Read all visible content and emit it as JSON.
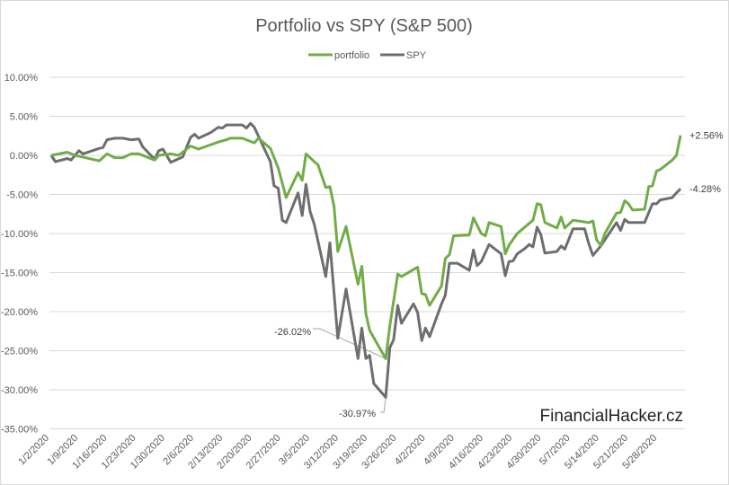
{
  "chart_data": {
    "type": "line",
    "title": "Portfolio vs SPY (S&P 500)",
    "xlabel": "",
    "ylabel": "",
    "x_unit": "days since 1/2/2020",
    "ylim": [
      -35,
      10
    ],
    "y_ticks": [
      10,
      5,
      0,
      -5,
      -10,
      -15,
      -20,
      -25,
      -30,
      -35
    ],
    "y_tick_labels": [
      "10.00%",
      "5.00%",
      "0.00%",
      "-5.00%",
      "-10.00%",
      "-15.00%",
      "-20.00%",
      "-25.00%",
      "-30.00%",
      "-35.00%"
    ],
    "x_ticks": [
      0,
      7,
      14,
      21,
      28,
      35,
      42,
      49,
      56,
      63,
      70,
      77,
      84,
      91,
      98,
      105,
      112,
      119,
      126,
      133,
      140,
      147
    ],
    "x_tick_labels": [
      "1/2/2020",
      "1/9/2020",
      "1/16/2020",
      "1/23/2020",
      "1/30/2020",
      "2/6/2020",
      "2/13/2020",
      "2/20/2020",
      "2/27/2020",
      "3/5/2020",
      "3/12/2020",
      "3/19/2020",
      "3/26/2020",
      "4/2/2020",
      "4/9/2020",
      "4/16/2020",
      "4/23/2020",
      "4/30/2020",
      "5/7/2020",
      "5/14/2020",
      "5/21/2020",
      "5/28/2020"
    ],
    "grid": true,
    "legend_position": "top",
    "series": [
      {
        "name": "portfolio",
        "color": "#70ad47",
        "x": [
          0,
          3.9,
          5.8,
          11.6,
          13.5,
          15.4,
          17.3,
          19.3,
          21.2,
          25.0,
          26.0,
          28.9,
          30.8,
          33.7,
          35.6,
          40.4,
          42.4,
          43.3,
          46.2,
          49.1,
          50.1,
          53.0,
          54.9,
          56.8,
          59.7,
          60.7,
          61.6,
          63.6,
          64.5,
          66.4,
          67.4,
          68.4,
          69.3,
          71.3,
          74.2,
          75.1,
          76.1,
          77.0,
          80.9,
          81.9,
          83.8,
          84.7,
          88.6,
          89.6,
          90.5,
          91.5,
          94.4,
          95.3,
          96.3,
          97.3,
          101.1,
          102.1,
          104.0,
          105.0,
          105.9,
          108.8,
          109.8,
          110.7,
          112.7,
          116.5,
          117.5,
          118.4,
          119.4,
          122.3,
          123.3,
          124.2,
          126.2,
          130.0,
          131.0,
          131.9,
          132.9,
          133.9,
          136.7,
          137.7,
          138.7,
          139.6,
          140.6,
          143.5,
          144.5,
          145.4,
          146.4,
          147.3,
          150.2,
          151.2,
          152.2
        ],
        "values": [
          0,
          0.4,
          0,
          -0.7,
          0.2,
          -0.3,
          -0.3,
          0.2,
          0.2,
          -0.6,
          0,
          0.2,
          0,
          1.2,
          0.8,
          1.7,
          2.0,
          2.2,
          2.2,
          1.6,
          2.2,
          0.9,
          -1.6,
          -5.4,
          -2.2,
          -3.2,
          0.2,
          -0.8,
          -1.2,
          -4.1,
          -4.0,
          -6.5,
          -12.3,
          -9.1,
          -16.5,
          -14.2,
          -20.3,
          -22.4,
          -26.02,
          -21.8,
          -15.2,
          -15.5,
          -14.3,
          -17.7,
          -17.8,
          -19.2,
          -16.7,
          -13.2,
          -12.7,
          -10.3,
          -10.2,
          -8.0,
          -10.0,
          -10.3,
          -8.6,
          -9.1,
          -12.6,
          -11.5,
          -10.0,
          -8.3,
          -6.2,
          -6.3,
          -8.6,
          -9.3,
          -7.9,
          -9.3,
          -8.3,
          -8.6,
          -8.4,
          -10.8,
          -11.5,
          -10.0,
          -7.4,
          -7.3,
          -5.8,
          -6.2,
          -7.0,
          -6.9,
          -4.0,
          -3.9,
          -2.0,
          -1.8,
          -0.6,
          0,
          2.56
        ]
      },
      {
        "name": "SPY",
        "color": "#6e6e6e",
        "x": [
          0,
          1.0,
          3.9,
          4.8,
          6.7,
          7.7,
          11.6,
          12.5,
          13.5,
          15.4,
          17.3,
          19.3,
          21.2,
          22.1,
          25.0,
          26.0,
          27.0,
          28.9,
          31.8,
          33.7,
          34.7,
          35.6,
          38.5,
          40.4,
          41.4,
          42.4,
          46.2,
          47.2,
          48.2,
          49.1,
          53.0,
          53.9,
          54.9,
          55.9,
          56.8,
          59.7,
          60.7,
          61.6,
          62.6,
          63.6,
          66.4,
          67.4,
          69.3,
          71.3,
          74.2,
          75.1,
          76.1,
          77.0,
          78.0,
          80.9,
          81.9,
          82.8,
          83.8,
          84.7,
          87.6,
          88.6,
          89.6,
          90.5,
          91.5,
          94.4,
          95.3,
          96.3,
          98.2,
          101.1,
          102.1,
          103.0,
          104.0,
          105.9,
          108.8,
          109.8,
          110.7,
          111.7,
          112.7,
          114.6,
          115.6,
          116.5,
          117.5,
          118.4,
          119.4,
          122.3,
          123.3,
          124.2,
          126.2,
          129.0,
          130.0,
          131.0,
          132.9,
          133.9,
          136.7,
          137.7,
          138.7,
          139.6,
          143.5,
          145.4,
          146.4,
          147.3,
          150.2,
          151.2,
          152.2
        ],
        "values": [
          0,
          -0.8,
          -0.4,
          -0.6,
          0.6,
          0.2,
          0.9,
          1.0,
          2.0,
          2.2,
          2.2,
          2.0,
          2.1,
          1.1,
          -0.5,
          0.6,
          0.8,
          -0.9,
          -0.2,
          2.3,
          2.7,
          2.2,
          2.9,
          3.6,
          3.5,
          3.9,
          3.9,
          3.5,
          4.1,
          3.6,
          -0.8,
          -3.9,
          -4.2,
          -8.3,
          -8.6,
          -4.8,
          -7.7,
          -3.7,
          -7.2,
          -8.8,
          -15.5,
          -11.2,
          -23.4,
          -17.1,
          -26.0,
          -22.1,
          -26.0,
          -25.6,
          -29.2,
          -30.97,
          -24.6,
          -23.6,
          -19.2,
          -21.5,
          -19.0,
          -20.1,
          -23.7,
          -22.1,
          -23.2,
          -19.0,
          -17.9,
          -13.8,
          -13.8,
          -14.7,
          -12.1,
          -14.1,
          -13.6,
          -11.4,
          -12.6,
          -15.4,
          -13.6,
          -13.5,
          -12.6,
          -11.9,
          -11.4,
          -11.7,
          -9.2,
          -10.1,
          -12.5,
          -12.3,
          -11.6,
          -12.0,
          -9.4,
          -9.4,
          -11.3,
          -12.8,
          -11.6,
          -10.8,
          -8.6,
          -9.6,
          -8.2,
          -8.6,
          -8.6,
          -6.2,
          -6.2,
          -5.7,
          -5.4,
          -4.8,
          -4.28
        ]
      }
    ],
    "annotations": [
      {
        "text": "+2.56%",
        "series": "portfolio",
        "x": 152.2,
        "y": 2.56
      },
      {
        "text": "-4.28%",
        "series": "SPY",
        "x": 152.2,
        "y": -4.28
      },
      {
        "text": "-26.02%",
        "series": "portfolio",
        "x": 80.9,
        "y": -26.02
      },
      {
        "text": "-30.97%",
        "series": "SPY",
        "x": 80.9,
        "y": -30.97
      }
    ]
  },
  "watermark": "FinancialHacker.cz"
}
